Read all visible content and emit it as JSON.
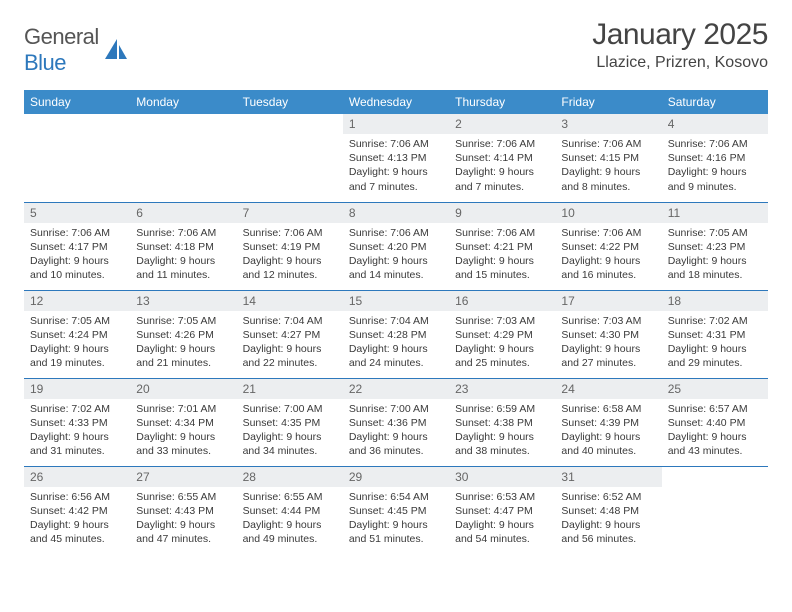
{
  "logo": {
    "general": "General",
    "blue": "Blue"
  },
  "title": "January 2025",
  "location": "Llazice, Prizren, Kosovo",
  "colors": {
    "header_bg": "#3b8bc9",
    "header_text": "#ffffff",
    "daynum_bg": "#eceef0",
    "row_border": "#2d78bc",
    "logo_blue": "#2d78bc"
  },
  "day_headers": [
    "Sunday",
    "Monday",
    "Tuesday",
    "Wednesday",
    "Thursday",
    "Friday",
    "Saturday"
  ],
  "weeks": [
    [
      null,
      null,
      null,
      {
        "n": "1",
        "sr": "7:06 AM",
        "ss": "4:13 PM",
        "dl": "9 hours and 7 minutes."
      },
      {
        "n": "2",
        "sr": "7:06 AM",
        "ss": "4:14 PM",
        "dl": "9 hours and 7 minutes."
      },
      {
        "n": "3",
        "sr": "7:06 AM",
        "ss": "4:15 PM",
        "dl": "9 hours and 8 minutes."
      },
      {
        "n": "4",
        "sr": "7:06 AM",
        "ss": "4:16 PM",
        "dl": "9 hours and 9 minutes."
      }
    ],
    [
      {
        "n": "5",
        "sr": "7:06 AM",
        "ss": "4:17 PM",
        "dl": "9 hours and 10 minutes."
      },
      {
        "n": "6",
        "sr": "7:06 AM",
        "ss": "4:18 PM",
        "dl": "9 hours and 11 minutes."
      },
      {
        "n": "7",
        "sr": "7:06 AM",
        "ss": "4:19 PM",
        "dl": "9 hours and 12 minutes."
      },
      {
        "n": "8",
        "sr": "7:06 AM",
        "ss": "4:20 PM",
        "dl": "9 hours and 14 minutes."
      },
      {
        "n": "9",
        "sr": "7:06 AM",
        "ss": "4:21 PM",
        "dl": "9 hours and 15 minutes."
      },
      {
        "n": "10",
        "sr": "7:06 AM",
        "ss": "4:22 PM",
        "dl": "9 hours and 16 minutes."
      },
      {
        "n": "11",
        "sr": "7:05 AM",
        "ss": "4:23 PM",
        "dl": "9 hours and 18 minutes."
      }
    ],
    [
      {
        "n": "12",
        "sr": "7:05 AM",
        "ss": "4:24 PM",
        "dl": "9 hours and 19 minutes."
      },
      {
        "n": "13",
        "sr": "7:05 AM",
        "ss": "4:26 PM",
        "dl": "9 hours and 21 minutes."
      },
      {
        "n": "14",
        "sr": "7:04 AM",
        "ss": "4:27 PM",
        "dl": "9 hours and 22 minutes."
      },
      {
        "n": "15",
        "sr": "7:04 AM",
        "ss": "4:28 PM",
        "dl": "9 hours and 24 minutes."
      },
      {
        "n": "16",
        "sr": "7:03 AM",
        "ss": "4:29 PM",
        "dl": "9 hours and 25 minutes."
      },
      {
        "n": "17",
        "sr": "7:03 AM",
        "ss": "4:30 PM",
        "dl": "9 hours and 27 minutes."
      },
      {
        "n": "18",
        "sr": "7:02 AM",
        "ss": "4:31 PM",
        "dl": "9 hours and 29 minutes."
      }
    ],
    [
      {
        "n": "19",
        "sr": "7:02 AM",
        "ss": "4:33 PM",
        "dl": "9 hours and 31 minutes."
      },
      {
        "n": "20",
        "sr": "7:01 AM",
        "ss": "4:34 PM",
        "dl": "9 hours and 33 minutes."
      },
      {
        "n": "21",
        "sr": "7:00 AM",
        "ss": "4:35 PM",
        "dl": "9 hours and 34 minutes."
      },
      {
        "n": "22",
        "sr": "7:00 AM",
        "ss": "4:36 PM",
        "dl": "9 hours and 36 minutes."
      },
      {
        "n": "23",
        "sr": "6:59 AM",
        "ss": "4:38 PM",
        "dl": "9 hours and 38 minutes."
      },
      {
        "n": "24",
        "sr": "6:58 AM",
        "ss": "4:39 PM",
        "dl": "9 hours and 40 minutes."
      },
      {
        "n": "25",
        "sr": "6:57 AM",
        "ss": "4:40 PM",
        "dl": "9 hours and 43 minutes."
      }
    ],
    [
      {
        "n": "26",
        "sr": "6:56 AM",
        "ss": "4:42 PM",
        "dl": "9 hours and 45 minutes."
      },
      {
        "n": "27",
        "sr": "6:55 AM",
        "ss": "4:43 PM",
        "dl": "9 hours and 47 minutes."
      },
      {
        "n": "28",
        "sr": "6:55 AM",
        "ss": "4:44 PM",
        "dl": "9 hours and 49 minutes."
      },
      {
        "n": "29",
        "sr": "6:54 AM",
        "ss": "4:45 PM",
        "dl": "9 hours and 51 minutes."
      },
      {
        "n": "30",
        "sr": "6:53 AM",
        "ss": "4:47 PM",
        "dl": "9 hours and 54 minutes."
      },
      {
        "n": "31",
        "sr": "6:52 AM",
        "ss": "4:48 PM",
        "dl": "9 hours and 56 minutes."
      },
      null
    ]
  ],
  "labels": {
    "sunrise": "Sunrise: ",
    "sunset": "Sunset: ",
    "daylight": "Daylight: "
  }
}
